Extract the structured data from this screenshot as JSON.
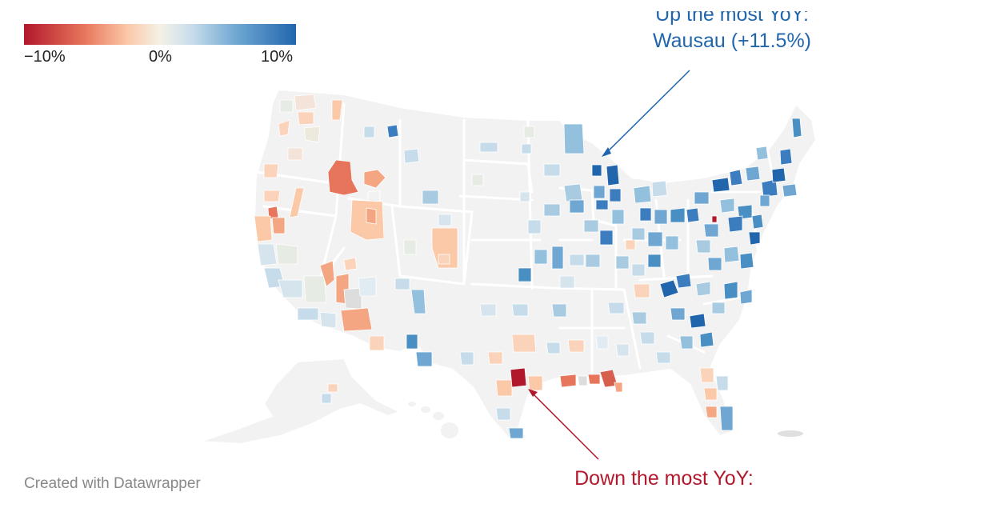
{
  "legend": {
    "min_label": "−10%",
    "mid_label": "0%",
    "max_label": "10%",
    "colors": [
      "#b2182b",
      "#e7755b",
      "#fbc8a8",
      "#f5f1e6",
      "#c7dceb",
      "#6fa7d2",
      "#2166ac"
    ]
  },
  "annotations": {
    "up": {
      "line1": "Up the most YoY:",
      "line2": "Wausau (+11.5%)"
    },
    "down": {
      "line1": "Down the most YoY:"
    }
  },
  "credit": "Created with Datawrapper",
  "map": {
    "base_color": "#f2f2f2",
    "border_color": "#ffffff"
  }
}
